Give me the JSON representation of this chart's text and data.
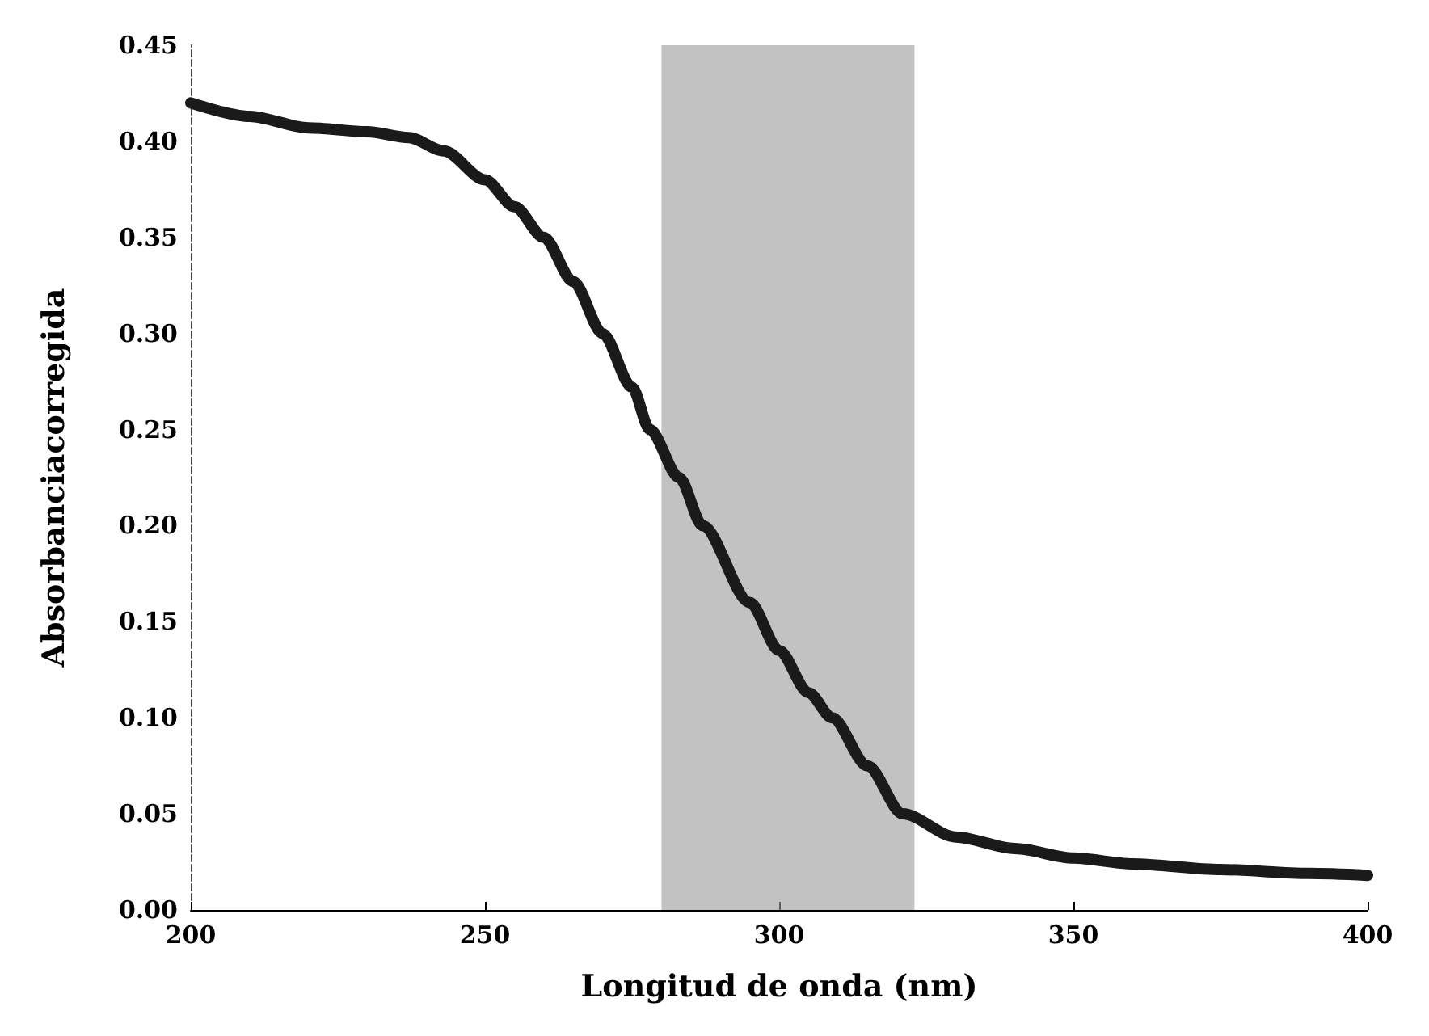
{
  "chart_data": {
    "type": "line",
    "xlabel": "Longitud de onda (nm)",
    "ylabel": "Absorbanciacorregida",
    "x": [
      200,
      210,
      220,
      230,
      237,
      243,
      250,
      255,
      260,
      265,
      270,
      275,
      278,
      283,
      287,
      295,
      300,
      305,
      309,
      315,
      321,
      330,
      340,
      350,
      360,
      375,
      390,
      400
    ],
    "series": [
      {
        "color": "#1a1a1a",
        "values": [
          0.42,
          0.413,
          0.407,
          0.405,
          0.402,
          0.395,
          0.38,
          0.366,
          0.35,
          0.327,
          0.3,
          0.272,
          0.25,
          0.225,
          0.2,
          0.16,
          0.135,
          0.113,
          0.1,
          0.075,
          0.05,
          0.038,
          0.032,
          0.027,
          0.024,
          0.021,
          0.019,
          0.018
        ]
      }
    ],
    "xlim": [
      200,
      400
    ],
    "xticks": [
      200,
      250,
      300,
      350,
      400
    ],
    "ylim": [
      0,
      0.45
    ],
    "yticks": [
      {
        "value": 0,
        "label": "0.00"
      },
      {
        "value": 0.05,
        "label": "0.05"
      },
      {
        "value": 0.1,
        "label": "0.10"
      },
      {
        "value": 0.15,
        "label": "0.15"
      },
      {
        "value": 0.2,
        "label": "0.20"
      },
      {
        "value": 0.25,
        "label": "0.25"
      },
      {
        "value": 0.3,
        "label": "0.30"
      },
      {
        "value": 0.35,
        "label": "0.35"
      },
      {
        "value": 0.4,
        "label": "0.40"
      },
      {
        "value": 0.45,
        "label": "0.45"
      }
    ],
    "bands": [
      {
        "axis": "x",
        "from": 280,
        "to": 323,
        "color": "#9a9a9a"
      }
    ],
    "grid": false,
    "line_style": "solid"
  }
}
